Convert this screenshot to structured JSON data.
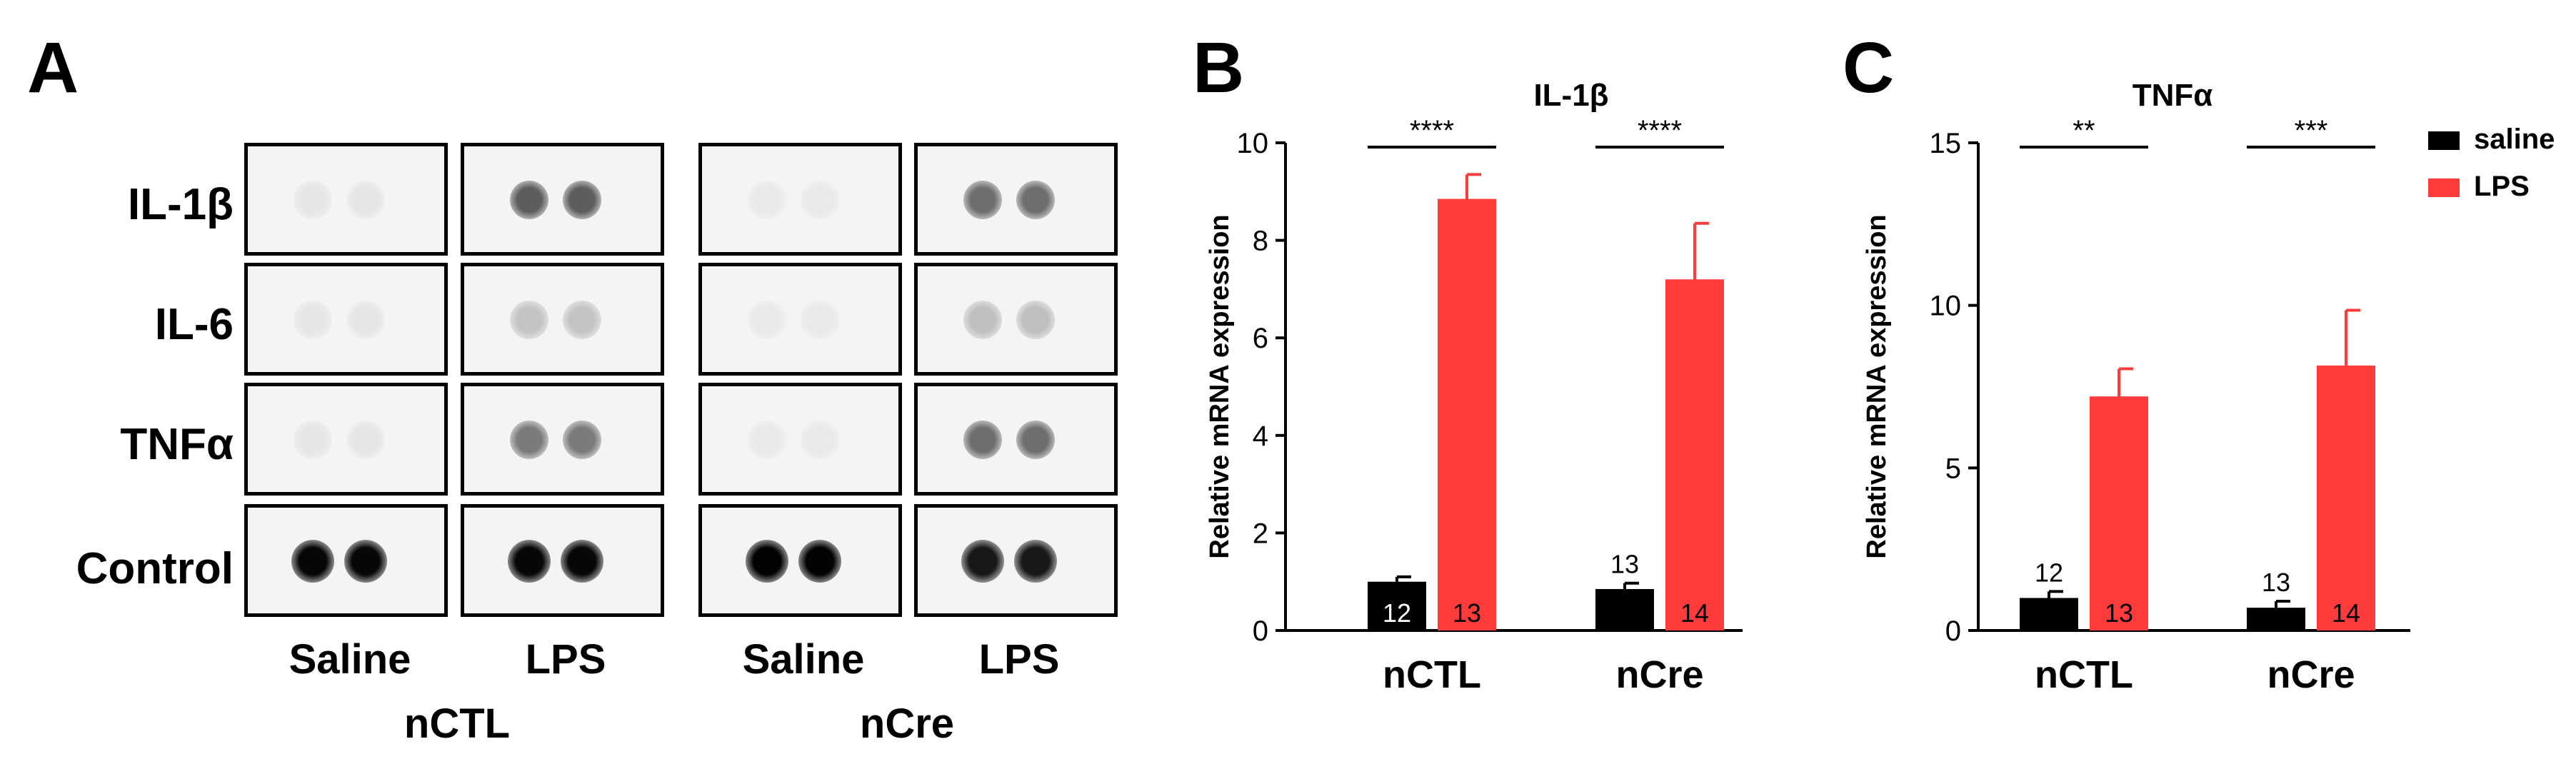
{
  "panels": {
    "a": {
      "letter": "A"
    },
    "b": {
      "letter": "B"
    },
    "c": {
      "letter": "C"
    }
  },
  "blot": {
    "rows": [
      "IL-1β",
      "IL-6",
      "TNFα",
      "Control"
    ],
    "conditions": [
      "Saline",
      "LPS",
      "Saline",
      "LPS"
    ],
    "groups": [
      "nCTL",
      "nCre"
    ],
    "spot_intensity": [
      [
        0.06,
        0.62,
        0.05,
        0.55
      ],
      [
        0.06,
        0.2,
        0.05,
        0.22
      ],
      [
        0.06,
        0.5,
        0.05,
        0.55
      ],
      [
        0.97,
        0.97,
        0.99,
        0.9
      ]
    ]
  },
  "chart_data": [
    {
      "type": "bar",
      "title": "IL-1β",
      "ylabel": "Relative mRNA expression",
      "ylim": [
        0,
        10
      ],
      "yticks": [
        0,
        2,
        4,
        6,
        8,
        10
      ],
      "categories": [
        "nCTL",
        "nCre"
      ],
      "series": [
        {
          "name": "saline",
          "color": "#000000",
          "values": [
            1.0,
            0.85
          ],
          "errors": [
            0.1,
            0.12
          ],
          "n": [
            "12",
            "13"
          ]
        },
        {
          "name": "LPS",
          "color": "#ff3b3b",
          "values": [
            8.85,
            7.2
          ],
          "errors": [
            0.5,
            1.15
          ],
          "n": [
            "13",
            "14"
          ]
        }
      ],
      "significance": [
        "****",
        "****"
      ]
    },
    {
      "type": "bar",
      "title": "TNFα",
      "ylabel": "Relative mRNA expression",
      "ylim": [
        0,
        15
      ],
      "yticks": [
        0,
        5,
        10,
        15
      ],
      "categories": [
        "nCTL",
        "nCre"
      ],
      "series": [
        {
          "name": "saline",
          "color": "#000000",
          "values": [
            1.0,
            0.7
          ],
          "errors": [
            0.2,
            0.2
          ],
          "n": [
            "12",
            "13"
          ]
        },
        {
          "name": "LPS",
          "color": "#ff3b3b",
          "values": [
            7.2,
            8.15
          ],
          "errors": [
            0.85,
            1.7
          ],
          "n": [
            "13",
            "14"
          ]
        }
      ],
      "significance": [
        "**",
        "***"
      ],
      "legend": {
        "position": "top-right",
        "entries": [
          "saline",
          "LPS"
        ]
      }
    }
  ]
}
